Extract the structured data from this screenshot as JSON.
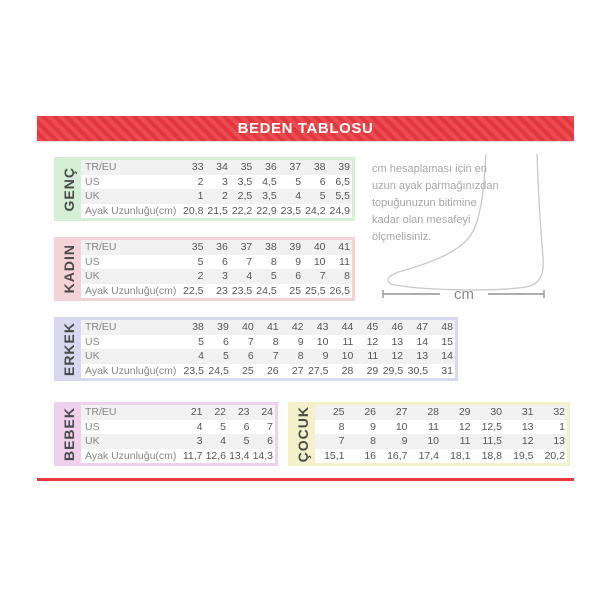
{
  "header": {
    "title": "BEDEN TABLOSU"
  },
  "colors": {
    "accent_red": "#e9383e",
    "row_alt_gray": "#f1f1f1",
    "section_tints": [
      "#d5eed6",
      "#f5d2d6",
      "#d8d8f0",
      "#efd0ed",
      "#f4f0c9"
    ],
    "table_text": "#555555",
    "label_text": "#868686",
    "info_text": "#a6a6a6",
    "foot_outline": "#c9c9c9"
  },
  "chart_data": [
    {
      "type": "table",
      "title": "GENÇ",
      "tint": "#d5eed6",
      "row_labels": [
        "TR/EU",
        "US",
        "UK",
        "Ayak Uzunluğu(cm)"
      ],
      "rows": [
        [
          "33",
          "34",
          "35",
          "36",
          "37",
          "38",
          "39"
        ],
        [
          "2",
          "3",
          "3,5",
          "4,5",
          "5",
          "6",
          "6,5"
        ],
        [
          "1",
          "2",
          "2,5",
          "3,5",
          "4",
          "5",
          "5,5"
        ],
        [
          "20,8",
          "21,5",
          "22,2",
          "22,9",
          "23,5",
          "24,2",
          "24,9"
        ]
      ]
    },
    {
      "type": "table",
      "title": "KADIN",
      "tint": "#f5d2d6",
      "row_labels": [
        "TR/EU",
        "US",
        "UK",
        "Ayak Uzunluğu(cm)"
      ],
      "rows": [
        [
          "35",
          "36",
          "37",
          "38",
          "39",
          "40",
          "41"
        ],
        [
          "5",
          "6",
          "7",
          "8",
          "9",
          "10",
          "11"
        ],
        [
          "2",
          "3",
          "4",
          "5",
          "6",
          "7",
          "8"
        ],
        [
          "22,5",
          "23",
          "23,5",
          "24,5",
          "25",
          "25,5",
          "26,5"
        ]
      ]
    },
    {
      "type": "table",
      "title": "ERKEK",
      "tint": "#d8d8f0",
      "row_labels": [
        "TR/EU",
        "US",
        "UK",
        "Ayak Uzunluğu(cm)"
      ],
      "rows": [
        [
          "38",
          "39",
          "40",
          "41",
          "42",
          "43",
          "44",
          "45",
          "46",
          "47",
          "48"
        ],
        [
          "5",
          "6",
          "7",
          "8",
          "9",
          "10",
          "11",
          "12",
          "13",
          "14",
          "15"
        ],
        [
          "4",
          "5",
          "6",
          "7",
          "8",
          "9",
          "10",
          "11",
          "12",
          "13",
          "14"
        ],
        [
          "23,5",
          "24,5",
          "25",
          "26",
          "27",
          "27,5",
          "28",
          "29",
          "29,5",
          "30,5",
          "31"
        ]
      ]
    },
    {
      "type": "table",
      "title": "BEBEK",
      "tint": "#efd0ed",
      "row_labels": [
        "TR/EU",
        "US",
        "UK",
        "Ayak Uzunluğu(cm)"
      ],
      "rows": [
        [
          "21",
          "22",
          "23",
          "24"
        ],
        [
          "4",
          "5",
          "6",
          "7"
        ],
        [
          "3",
          "4",
          "5",
          "6"
        ],
        [
          "11,7",
          "12,6",
          "13,4",
          "14,3"
        ]
      ]
    },
    {
      "type": "table",
      "title": "ÇOCUK",
      "tint": "#f4f0c9",
      "row_labels": null,
      "rows": [
        [
          "25",
          "26",
          "27",
          "28",
          "29",
          "30",
          "31",
          "32"
        ],
        [
          "8",
          "9",
          "10",
          "11",
          "12",
          "12,5",
          "13",
          "1"
        ],
        [
          "7",
          "8",
          "9",
          "10",
          "11",
          "11,5",
          "12",
          "13"
        ],
        [
          "15,1",
          "16",
          "16,7",
          "17,4",
          "18,1",
          "18,8",
          "19,5",
          "20,2"
        ]
      ]
    }
  ],
  "info": {
    "text": "cm hesaplaması için en uzun ayak parmağınızdan topuğunuzun bitimine kadar olan mesafeyi ölçmelisiniz.",
    "unit_label": "cm"
  }
}
